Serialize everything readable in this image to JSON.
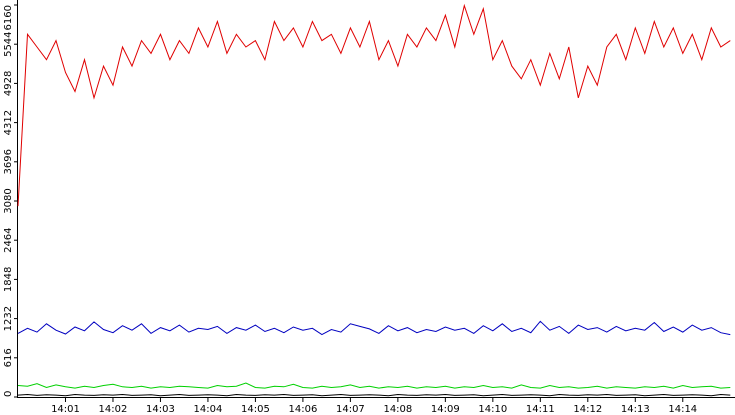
{
  "chart_data": {
    "type": "line",
    "x": [
      0,
      0.2,
      0.4,
      0.6,
      0.8,
      1,
      1.2,
      1.4,
      1.6,
      1.8,
      2,
      2.2,
      2.4,
      2.6,
      2.8,
      3,
      3.2,
      3.4,
      3.6,
      3.8,
      4,
      4.2,
      4.4,
      4.6,
      4.8,
      5,
      5.2,
      5.4,
      5.6,
      5.8,
      6,
      6.2,
      6.4,
      6.6,
      6.8,
      7,
      7.2,
      7.4,
      7.6,
      7.8,
      8,
      8.2,
      8.4,
      8.6,
      8.8,
      9,
      9.2,
      9.4,
      9.6,
      9.8,
      10,
      10.2,
      10.4,
      10.6,
      10.8,
      11,
      11.2,
      11.4,
      11.6,
      11.8,
      12,
      12.2,
      12.4,
      12.6,
      12.8,
      13,
      13.2,
      13.4,
      13.6,
      13.8,
      14,
      14.2,
      14.4,
      14.6,
      14.8,
      15
    ],
    "series": [
      {
        "color": "#e00000",
        "values": [
          3000,
          5700,
          5500,
          5300,
          5600,
          5100,
          4800,
          5300,
          4700,
          5200,
          4900,
          5500,
          5200,
          5600,
          5400,
          5700,
          5300,
          5600,
          5400,
          5800,
          5500,
          5900,
          5400,
          5700,
          5500,
          5600,
          5300,
          5900,
          5600,
          5800,
          5500,
          5900,
          5600,
          5700,
          5400,
          5800,
          5500,
          5900,
          5300,
          5600,
          5200,
          5700,
          5500,
          5800,
          5600,
          6000,
          5500,
          6150,
          5700,
          6100,
          5300,
          5600,
          5200,
          5000,
          5300,
          4900,
          5400,
          5000,
          5500,
          4700,
          5200,
          4900,
          5500,
          5700,
          5300,
          5800,
          5400,
          5900,
          5500,
          5800,
          5400,
          5700,
          5300,
          5800,
          5500,
          5600
        ]
      },
      {
        "color": "#0000c0",
        "values": [
          1000,
          1080,
          1020,
          1150,
          1050,
          990,
          1100,
          1040,
          1180,
          1060,
          1010,
          1120,
          1050,
          1150,
          1000,
          1090,
          1040,
          1130,
          1020,
          1080,
          1060,
          1110,
          1000,
          1090,
          1050,
          1130,
          1030,
          1080,
          1010,
          1100,
          1050,
          1080,
          980,
          1060,
          1020,
          1150,
          1110,
          1070,
          1000,
          1120,
          1040,
          1090,
          1010,
          1060,
          1030,
          1100,
          1050,
          1080,
          1000,
          1120,
          1040,
          1150,
          1030,
          1080,
          1010,
          1190,
          1050,
          1110,
          1000,
          1130,
          1060,
          1090,
          1020,
          1110,
          1040,
          1080,
          1050,
          1170,
          1030,
          1100,
          1020,
          1130,
          1050,
          1090,
          1010,
          980
        ]
      },
      {
        "color": "#00d000",
        "values": [
          180,
          170,
          210,
          150,
          190,
          160,
          140,
          170,
          150,
          180,
          200,
          160,
          150,
          170,
          140,
          160,
          150,
          170,
          160,
          150,
          140,
          180,
          160,
          170,
          220,
          150,
          140,
          170,
          160,
          200,
          150,
          140,
          170,
          150,
          160,
          190,
          150,
          170,
          140,
          160,
          150,
          170,
          140,
          160,
          150,
          170,
          140,
          160,
          150,
          180,
          150,
          160,
          140,
          190,
          150,
          140,
          180,
          150,
          160,
          140,
          150,
          170,
          140,
          160,
          150,
          140,
          160,
          150,
          170,
          140,
          180,
          150,
          160,
          170,
          140,
          150
        ]
      },
      {
        "color": "#000000",
        "values": [
          30,
          40,
          25,
          35,
          30,
          20,
          40,
          30,
          25,
          35,
          30,
          40,
          25,
          30,
          35,
          20,
          30,
          40,
          25,
          30,
          35,
          30,
          20,
          40,
          30,
          25,
          35,
          30,
          40,
          25,
          30,
          35,
          20,
          30,
          40,
          25,
          30,
          35,
          30,
          20,
          40,
          30,
          25,
          35,
          30,
          40,
          25,
          30,
          35,
          20,
          30,
          40,
          25,
          30,
          35,
          30,
          20,
          40,
          30,
          25,
          35,
          30,
          40,
          25,
          30,
          35,
          20,
          30,
          40,
          25,
          30,
          35,
          30,
          20,
          40,
          30
        ]
      }
    ],
    "xlim": [
      0,
      15.1
    ],
    "xticks": [
      {
        "value": 1,
        "label": "14:01"
      },
      {
        "value": 2,
        "label": "14:02"
      },
      {
        "value": 3,
        "label": "14:03"
      },
      {
        "value": 4,
        "label": "14:04"
      },
      {
        "value": 5,
        "label": "14:05"
      },
      {
        "value": 6,
        "label": "14:06"
      },
      {
        "value": 7,
        "label": "14:07"
      },
      {
        "value": 8,
        "label": "14:08"
      },
      {
        "value": 9,
        "label": "14:09"
      },
      {
        "value": 10,
        "label": "14:10"
      },
      {
        "value": 11,
        "label": "14:11"
      },
      {
        "value": 12,
        "label": "14:12"
      },
      {
        "value": 13,
        "label": "14:13"
      },
      {
        "value": 14,
        "label": "14:14"
      }
    ],
    "ylim": [
      0,
      6160
    ],
    "yticks": [
      0,
      616,
      1232,
      1848,
      2464,
      3080,
      3696,
      4312,
      4928,
      5544,
      6160
    ]
  }
}
